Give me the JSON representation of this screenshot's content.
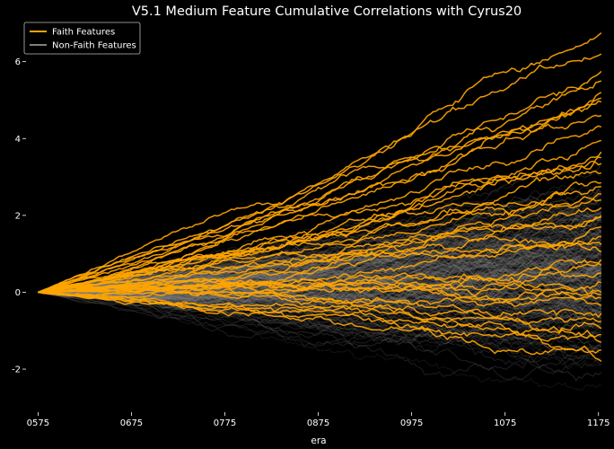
{
  "chart_data": {
    "type": "line",
    "title": "V5.1 Medium Feature Cumulative Correlations with Cyrus20",
    "xlabel": "era",
    "ylabel": "",
    "x_ticks": [
      "0575",
      "0675",
      "0775",
      "0875",
      "0975",
      "1075",
      "1175"
    ],
    "y_ticks": [
      "-2",
      "0",
      "2",
      "4",
      "6"
    ],
    "xlim": [
      565,
      1182
    ],
    "ylim": [
      -3.05,
      6.95
    ],
    "grid": false,
    "legend_position": "top-left",
    "background_color": "#000000",
    "series": [
      {
        "name": "Faith Features",
        "color": "#FFA500",
        "count": 40,
        "end_values": [
          6.75,
          6.2,
          5.75,
          5.5,
          5.2,
          5.05,
          4.95,
          4.6,
          4.3,
          3.65,
          3.5,
          3.35,
          3.1,
          2.85,
          2.75,
          2.55,
          2.4,
          2.2,
          1.95,
          1.7,
          1.45,
          1.25,
          0.85,
          0.7,
          0.5,
          0.25,
          0.0,
          -0.15,
          -0.35,
          -0.55,
          -0.75,
          -0.95,
          -1.1,
          -1.3,
          -1.5,
          -1.8,
          3.95,
          1.05,
          -0.05,
          2.0
        ]
      },
      {
        "name": "Non-Faith Features",
        "color": "#808080",
        "count": 320,
        "end_range": [
          -2.7,
          3.7
        ]
      }
    ]
  }
}
